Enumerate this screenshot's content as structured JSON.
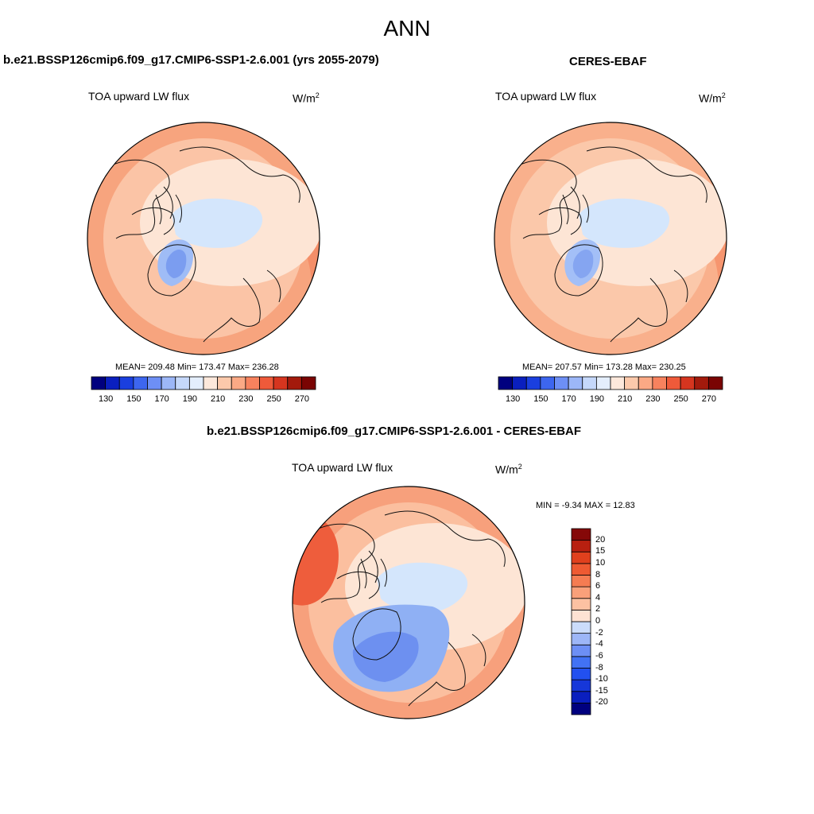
{
  "figure": {
    "title": "ANN"
  },
  "panels": [
    {
      "title": "b.e21.BSSP126cmip6.f09_g17.CMIP6-SSP1-2.6.001 (yrs 2055-2079)",
      "variable": "TOA upward LW flux",
      "units": "W/m",
      "units_sup": "2",
      "stats": "MEAN= 209.48  Min= 173.47  Max= 236.28",
      "colorbar": {
        "colors": [
          "#00007f",
          "#0a1fbf",
          "#1a3fdf",
          "#3d66ef",
          "#6d8ff5",
          "#9cb7f8",
          "#c5d8fb",
          "#e4eefd",
          "#fde8db",
          "#fcc9ab",
          "#fba985",
          "#f7825e",
          "#ef5a3a",
          "#d6351f",
          "#a31a0c",
          "#7a0403"
        ],
        "labels": [
          "130",
          "150",
          "170",
          "190",
          "210",
          "230",
          "250",
          "270"
        ]
      },
      "map_colors": {
        "ocean_lo": "#fbc4a6",
        "ring": "#f7a47e",
        "warm": "#f48e68",
        "ice": "#d4e6fc",
        "cold": "#9fbcf6",
        "colder": "#7b9df0",
        "pale": "#fde5d5"
      }
    },
    {
      "title": "CERES-EBAF",
      "variable": "TOA upward LW flux",
      "units": "W/m",
      "units_sup": "2",
      "stats": "MEAN= 207.57  Min= 173.28  Max= 230.25",
      "colorbar": {
        "colors": [
          "#00007f",
          "#0a1fbf",
          "#1a3fdf",
          "#3d66ef",
          "#6d8ff5",
          "#9cb7f8",
          "#c5d8fb",
          "#e4eefd",
          "#fde8db",
          "#fcc9ab",
          "#fba985",
          "#f7825e",
          "#ef5a3a",
          "#d6351f",
          "#a31a0c",
          "#7a0403"
        ],
        "labels": [
          "130",
          "150",
          "170",
          "190",
          "210",
          "230",
          "250",
          "270"
        ]
      },
      "map_colors": {
        "ocean_lo": "#fbc8aa",
        "ring": "#f9b08c",
        "warm": "#f6956f",
        "ice": "#d4e6fc",
        "cold": "#a3bff7",
        "colder": "#85a5f1",
        "pale": "#fde5d5"
      }
    },
    {
      "title": "b.e21.BSSP126cmip6.f09_g17.CMIP6-SSP1-2.6.001 - CERES-EBAF",
      "variable": "TOA upward LW flux",
      "units": "W/m",
      "units_sup": "2",
      "stats": "MIN =  -9.34 MAX =  12.83",
      "colorbar": {
        "colors": [
          "#00007f",
          "#0a1fbf",
          "#1637d9",
          "#2250ef",
          "#4272f4",
          "#6d8ff5",
          "#9db6f7",
          "#cbdcfb",
          "#fde2d3",
          "#fcc1a2",
          "#f9a07a",
          "#f57c52",
          "#ee5a32",
          "#e0401d",
          "#b82010",
          "#850808"
        ],
        "labels": [
          "20",
          "15",
          "10",
          "8",
          "6",
          "4",
          "2",
          "0",
          "-2",
          "-4",
          "-6",
          "-8",
          "-10",
          "-15",
          "-20"
        ]
      },
      "map_colors": {
        "ocean_lo": "#fbbf9f",
        "ring": "#f7a07c",
        "warm": "#ee5d3c",
        "ice": "#d4e6fc",
        "cold": "#8fb0f4",
        "colder": "#6d90f0",
        "pale": "#fde5d5"
      }
    }
  ]
}
